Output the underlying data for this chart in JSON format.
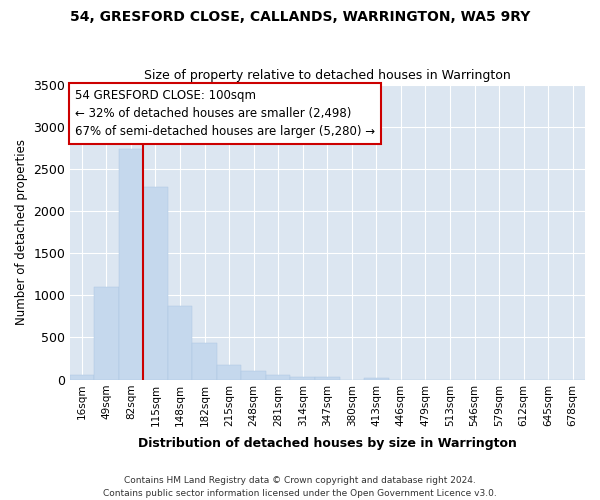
{
  "title1": "54, GRESFORD CLOSE, CALLANDS, WARRINGTON, WA5 9RY",
  "title2": "Size of property relative to detached houses in Warrington",
  "xlabel": "Distribution of detached houses by size in Warrington",
  "ylabel": "Number of detached properties",
  "footer1": "Contains HM Land Registry data © Crown copyright and database right 2024.",
  "footer2": "Contains public sector information licensed under the Open Government Licence v3.0.",
  "annotation_line1": "54 GRESFORD CLOSE: 100sqm",
  "annotation_line2": "← 32% of detached houses are smaller (2,498)",
  "annotation_line3": "67% of semi-detached houses are larger (5,280) →",
  "bar_color": "#c5d8ed",
  "bar_edge_color": "#a8c4e0",
  "vline_color": "#cc0000",
  "annotation_box_edge_color": "#cc0000",
  "bg_color": "#dce6f1",
  "grid_color": "#ffffff",
  "categories": [
    "16sqm",
    "49sqm",
    "82sqm",
    "115sqm",
    "148sqm",
    "182sqm",
    "215sqm",
    "248sqm",
    "281sqm",
    "314sqm",
    "347sqm",
    "380sqm",
    "413sqm",
    "446sqm",
    "479sqm",
    "513sqm",
    "546sqm",
    "579sqm",
    "612sqm",
    "645sqm",
    "678sqm"
  ],
  "values": [
    50,
    1100,
    2730,
    2290,
    870,
    430,
    175,
    100,
    60,
    35,
    25,
    0,
    15,
    0,
    0,
    0,
    0,
    0,
    0,
    0,
    0
  ],
  "vline_x_idx": 3,
  "ylim": [
    0,
    3500
  ],
  "yticks": [
    0,
    500,
    1000,
    1500,
    2000,
    2500,
    3000,
    3500
  ]
}
